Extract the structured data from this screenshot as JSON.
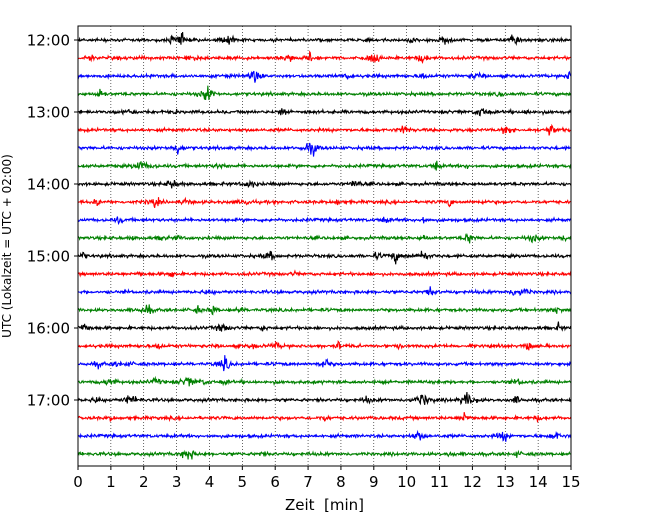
{
  "chart_data": {
    "type": "line",
    "title": "",
    "xlabel": "Zeit  [min]",
    "ylabel": "UTC (Lokalzeit = UTC + 02:00)",
    "xlim": [
      0,
      15
    ],
    "x_ticks": [
      "0",
      "1",
      "2",
      "3",
      "4",
      "5",
      "6",
      "7",
      "8",
      "9",
      "10",
      "11",
      "12",
      "13",
      "14",
      "15"
    ],
    "y_tick_labels": [
      "12:00",
      "13:00",
      "14:00",
      "15:00",
      "16:00",
      "17:00"
    ],
    "trace_interval_minutes": 15,
    "traces_per_hour": 4,
    "start_time": "12:00",
    "grid": "vertical dotted lines at each minute",
    "line_colors": [
      "#000000",
      "#ff0000",
      "#0000ff",
      "#008000"
    ],
    "traces": [
      {
        "start": "12:00",
        "color": "#000000"
      },
      {
        "start": "12:15",
        "color": "#ff0000"
      },
      {
        "start": "12:30",
        "color": "#0000ff"
      },
      {
        "start": "12:45",
        "color": "#008000"
      },
      {
        "start": "13:00",
        "color": "#000000"
      },
      {
        "start": "13:15",
        "color": "#ff0000"
      },
      {
        "start": "13:30",
        "color": "#0000ff"
      },
      {
        "start": "13:45",
        "color": "#008000"
      },
      {
        "start": "14:00",
        "color": "#000000"
      },
      {
        "start": "14:15",
        "color": "#ff0000"
      },
      {
        "start": "14:30",
        "color": "#0000ff"
      },
      {
        "start": "14:45",
        "color": "#008000"
      },
      {
        "start": "15:00",
        "color": "#000000"
      },
      {
        "start": "15:15",
        "color": "#ff0000"
      },
      {
        "start": "15:30",
        "color": "#0000ff"
      },
      {
        "start": "15:45",
        "color": "#008000"
      },
      {
        "start": "16:00",
        "color": "#000000"
      },
      {
        "start": "16:15",
        "color": "#ff0000"
      },
      {
        "start": "16:30",
        "color": "#0000ff"
      },
      {
        "start": "16:45",
        "color": "#008000"
      },
      {
        "start": "17:00",
        "color": "#000000"
      },
      {
        "start": "17:15",
        "color": "#ff0000"
      },
      {
        "start": "17:30",
        "color": "#0000ff"
      },
      {
        "start": "17:45",
        "color": "#008000"
      }
    ]
  }
}
